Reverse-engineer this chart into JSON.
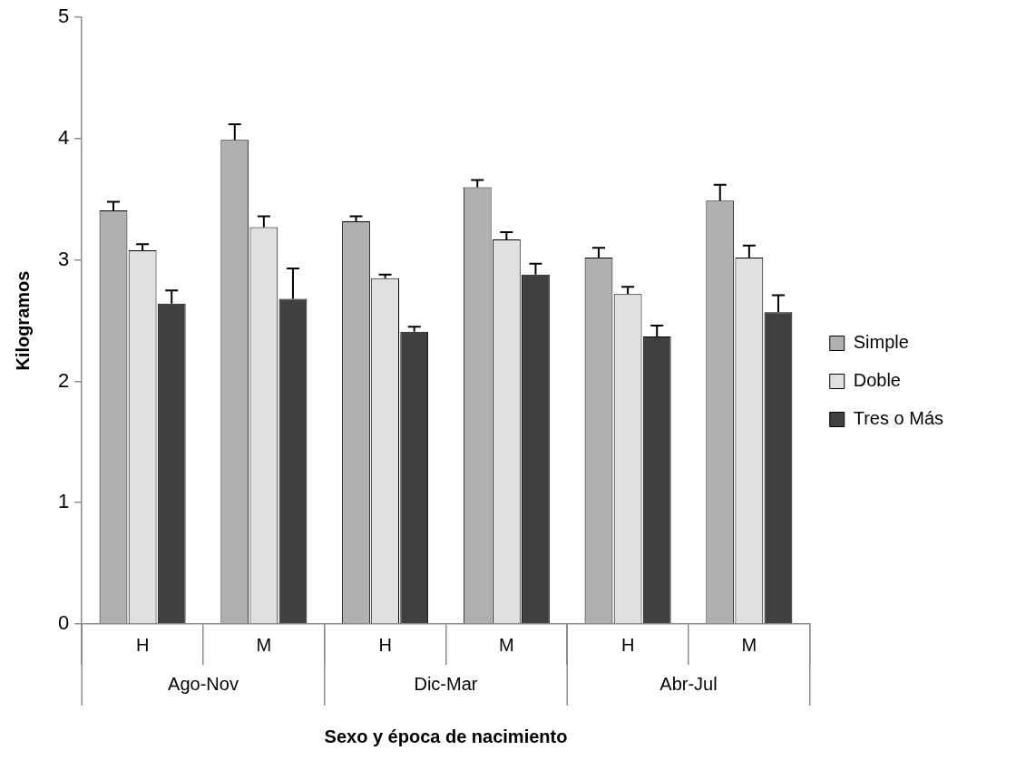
{
  "chart_data": {
    "type": "bar",
    "xlabel": "Sexo y época de nacimiento",
    "ylabel": "Kilogramos",
    "categories": [
      "H",
      "M",
      "H",
      "M",
      "H",
      "M"
    ],
    "annotations": [
      "Ago-Nov",
      "Dic-Mar",
      "Abr-Jul"
    ],
    "series": [
      {
        "name": "Simple",
        "color": "#b0b0b0",
        "values": [
          3.41,
          3.99,
          3.32,
          3.6,
          3.02,
          3.49
        ],
        "errors": [
          [
            3.41,
            3.48
          ],
          [
            3.99,
            4.12
          ],
          [
            3.32,
            3.36
          ],
          [
            3.6,
            3.66
          ],
          [
            3.02,
            3.1
          ],
          [
            3.49,
            3.62
          ]
        ]
      },
      {
        "name": "Doble",
        "color": "#e0e0e0",
        "values": [
          3.08,
          3.27,
          2.85,
          3.17,
          2.72,
          3.02
        ],
        "errors": [
          [
            3.08,
            3.13
          ],
          [
            3.27,
            3.36
          ],
          [
            2.85,
            2.88
          ],
          [
            3.17,
            3.23
          ],
          [
            2.72,
            2.78
          ],
          [
            3.02,
            3.12
          ]
        ]
      },
      {
        "name": "Tres o Más",
        "color": "#404040",
        "values": [
          2.64,
          2.68,
          2.41,
          2.88,
          2.37,
          2.57
        ],
        "errors": [
          [
            2.64,
            2.75
          ],
          [
            2.68,
            2.93
          ],
          [
            2.41,
            2.45
          ],
          [
            2.88,
            2.97
          ],
          [
            2.37,
            2.46
          ],
          [
            2.57,
            2.71
          ]
        ]
      }
    ],
    "ylim": [
      0,
      5
    ],
    "yticks": [
      0,
      1,
      2,
      3,
      4,
      5
    ],
    "grid": false,
    "legend": "right"
  }
}
